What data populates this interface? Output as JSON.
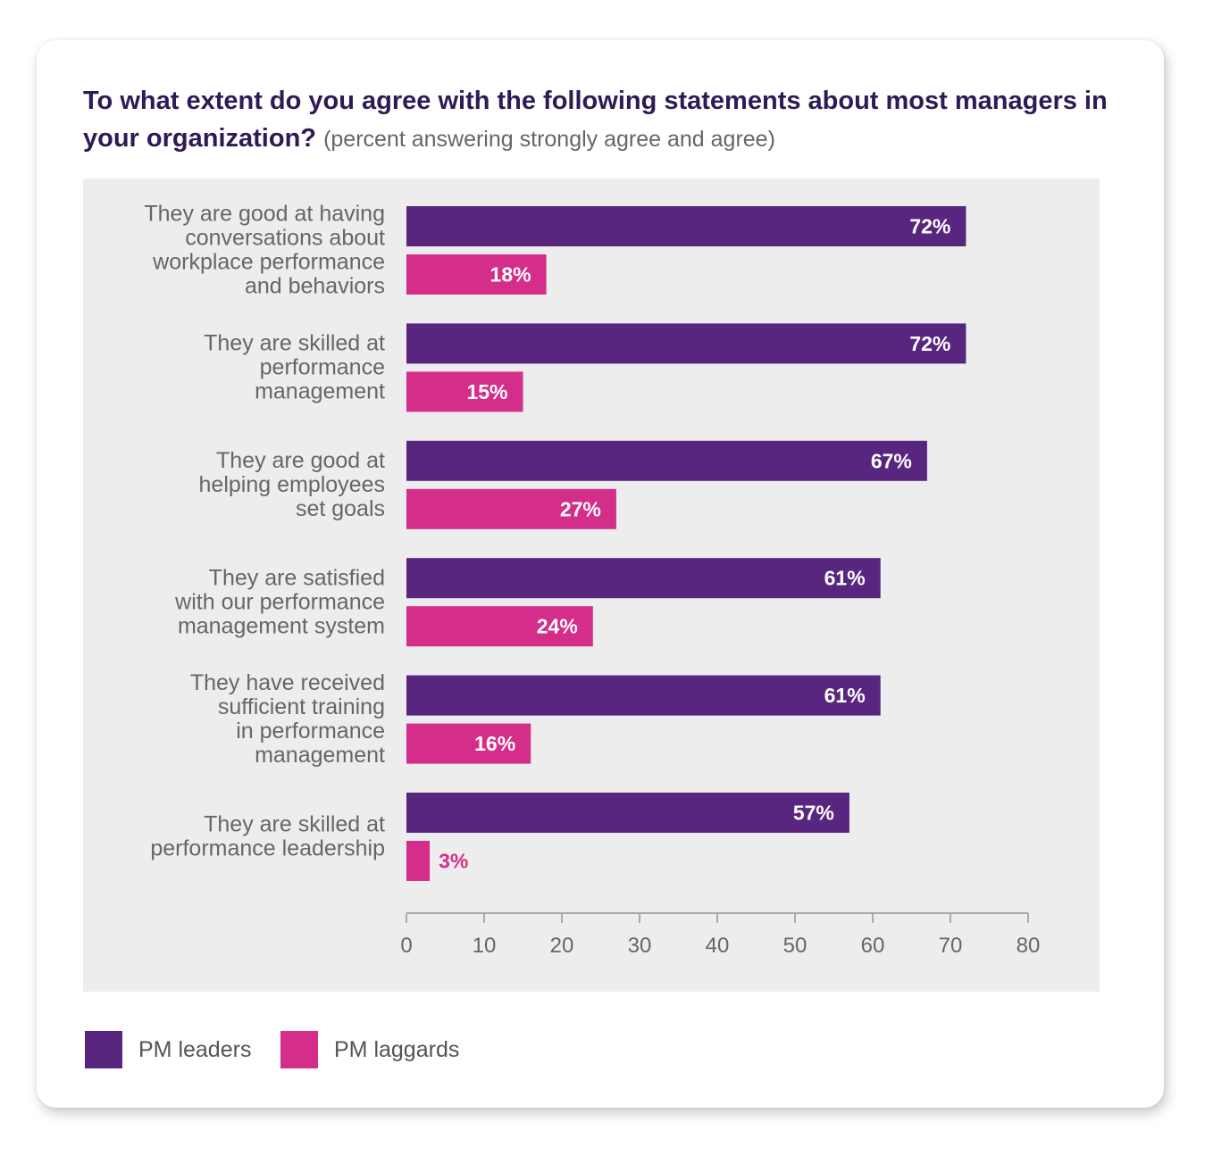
{
  "header": {
    "title": "To what extent do you agree with the following statements about most managers in your organization?",
    "subtitle": "(percent answering strongly agree and agree)"
  },
  "colors": {
    "leaders": "#59267f",
    "laggards": "#d42d8a",
    "plot_background": "#ededed",
    "label_text": "#666666",
    "axis": "#aaaaaa"
  },
  "chart_data": {
    "type": "bar",
    "orientation": "horizontal",
    "title": "To what extent do you agree with the following statements about most managers in your organization?",
    "subtitle": "(percent answering strongly agree and agree)",
    "categories": [
      [
        "They are good at having",
        "conversations about",
        "workplace performance",
        "and behaviors"
      ],
      [
        "They are skilled at",
        "performance",
        "management"
      ],
      [
        "They are good at",
        "helping employees",
        "set goals"
      ],
      [
        "They are satisfied",
        "with our performance",
        "management system"
      ],
      [
        "They have received",
        "sufficient training",
        "in performance",
        "management"
      ],
      [
        "They are skilled at",
        "performance leadership"
      ]
    ],
    "series": [
      {
        "name": "PM leaders",
        "values": [
          72,
          72,
          67,
          61,
          61,
          57
        ],
        "labels": [
          "72%",
          "72%",
          "67%",
          "61%",
          "61%",
          "57%"
        ]
      },
      {
        "name": "PM laggards",
        "values": [
          18,
          15,
          27,
          24,
          16,
          3
        ],
        "labels": [
          "18%",
          "15%",
          "27%",
          "24%",
          "16%",
          "3%"
        ]
      }
    ],
    "xlim": [
      0,
      80
    ],
    "xticks": [
      0,
      10,
      20,
      30,
      40,
      50,
      60,
      70,
      80
    ],
    "xticklabels": [
      "0",
      "10",
      "20",
      "30",
      "40",
      "50",
      "60",
      "70",
      "80"
    ],
    "grid": false,
    "legend_position": "bottom-left"
  }
}
